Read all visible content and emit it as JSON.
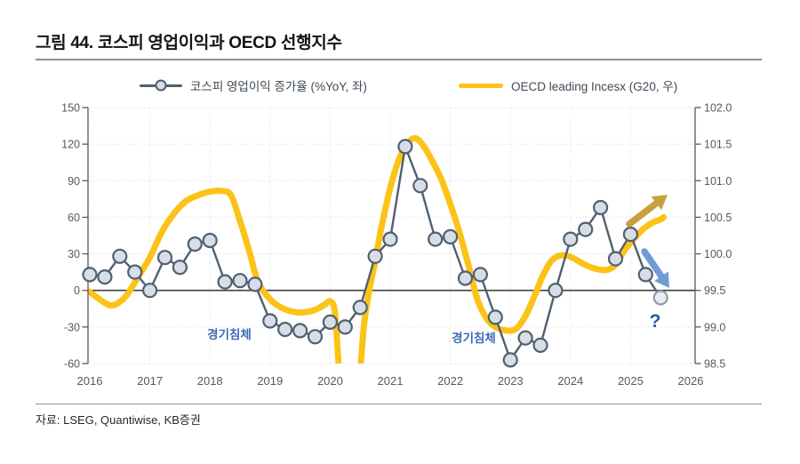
{
  "title": "그림 44. 코스피 영업이익과 OECD 선행지수",
  "legend": {
    "kospi": "코스피 영업이익 증가율 (%YoY, 좌)",
    "oecd": "OECD leading Incesx (G20, 우)"
  },
  "annotations": {
    "recession1": "경기침체",
    "recession2": "경기침체",
    "question": "?"
  },
  "source": "자료: LSEG, Quantiwise, KB증권",
  "colors": {
    "kospi_line": "#506070",
    "kospi_marker_fill": "#d8dee7",
    "kospi_marker_estimate_fill": "#e9edf3",
    "kospi_marker_estimate_stroke": "#8a9aab",
    "oecd_line": "#fbc317",
    "up_arrow": "#c7a13f",
    "down_arrow": "#6e9cd4",
    "recession_text": "#3d6ab5",
    "question_text": "#2c5aa5",
    "grid": "#d9d9d9",
    "zero_line": "#3f3f3f",
    "axis": "#595959"
  },
  "chart_data": {
    "type": "line",
    "title": "그림 44. 코스피 영업이익과 OECD 선행지수",
    "grid": true,
    "legend_position": "top",
    "x_axis": {
      "ticks": [
        2016,
        2017,
        2018,
        2019,
        2020,
        2021,
        2022,
        2023,
        2024,
        2025,
        2026
      ],
      "range": [
        2016,
        2026
      ]
    },
    "y_left": {
      "ticks": [
        150,
        120,
        90,
        60,
        30,
        0,
        -30,
        -60
      ],
      "range": [
        -60,
        150
      ]
    },
    "y_right": {
      "ticks": [
        "102.0",
        "101.5",
        "101.0",
        "100.5",
        "100.0",
        "99.5",
        "99.0",
        "98.5"
      ],
      "range": [
        98.5,
        102.0
      ]
    },
    "series": [
      {
        "name": "코스피 영업이익 증가율 (%YoY, 좌)",
        "axis": "left",
        "style": "line+markers",
        "color": "#506070",
        "x": [
          2016.0,
          2016.25,
          2016.5,
          2016.75,
          2017.0,
          2017.25,
          2017.5,
          2017.75,
          2018.0,
          2018.25,
          2018.5,
          2018.75,
          2019.0,
          2019.25,
          2019.5,
          2019.75,
          2020.0,
          2020.25,
          2020.5,
          2020.75,
          2021.0,
          2021.25,
          2021.5,
          2021.75,
          2022.0,
          2022.25,
          2022.5,
          2022.75,
          2023.0,
          2023.25,
          2023.5,
          2023.75,
          2024.0,
          2024.25,
          2024.5,
          2024.75,
          2025.0,
          2025.25,
          2025.5
        ],
        "values": [
          13,
          11,
          28,
          15,
          0,
          27,
          19,
          38,
          41,
          7,
          8,
          5,
          -25,
          -32,
          -33,
          -38,
          -26,
          -30,
          -14,
          28,
          42,
          118,
          86,
          42,
          44,
          10,
          13,
          -22,
          -57,
          -39,
          -45,
          0,
          42,
          50,
          68,
          26,
          46,
          13,
          -6
        ],
        "last_point_estimate": true
      },
      {
        "name": "OECD leading Incesx (G20, 우)",
        "axis": "right",
        "style": "smooth-line",
        "color": "#fbc317",
        "x": [
          2016.0,
          2016.25,
          2016.4,
          2016.6,
          2016.8,
          2017.0,
          2017.2,
          2017.4,
          2017.6,
          2017.8,
          2018.0,
          2018.2,
          2018.35,
          2018.5,
          2018.65,
          2018.8,
          2019.0,
          2019.2,
          2019.45,
          2019.7,
          2019.9,
          2020.0,
          2020.08,
          2020.15,
          2020.25,
          2020.38,
          2020.48,
          2020.56,
          2020.64,
          2020.75,
          2020.85,
          2021.0,
          2021.15,
          2021.3,
          2021.42,
          2021.55,
          2021.7,
          2021.85,
          2022.0,
          2022.15,
          2022.3,
          2022.45,
          2022.6,
          2022.75,
          2022.95,
          2023.1,
          2023.25,
          2023.4,
          2023.55,
          2023.7,
          2023.85,
          2024.0,
          2024.2,
          2024.4,
          2024.6,
          2024.75,
          2024.9,
          2025.05,
          2025.2,
          2025.35,
          2025.5,
          2025.55
        ],
        "values": [
          99.48,
          99.33,
          99.3,
          99.42,
          99.68,
          99.95,
          100.3,
          100.55,
          100.72,
          100.8,
          100.85,
          100.86,
          100.8,
          100.45,
          100.05,
          99.62,
          99.38,
          99.26,
          99.2,
          99.22,
          99.3,
          99.35,
          99.2,
          98.4,
          97.5,
          97.4,
          98.2,
          99.0,
          99.45,
          99.9,
          100.35,
          100.9,
          101.3,
          101.52,
          101.58,
          101.48,
          101.27,
          101.02,
          100.68,
          100.3,
          99.85,
          99.38,
          99.12,
          99.0,
          98.95,
          98.98,
          99.15,
          99.42,
          99.72,
          99.92,
          99.98,
          99.96,
          99.87,
          99.8,
          99.78,
          99.85,
          100.05,
          100.2,
          100.33,
          100.42,
          100.47,
          100.5
        ]
      }
    ]
  }
}
